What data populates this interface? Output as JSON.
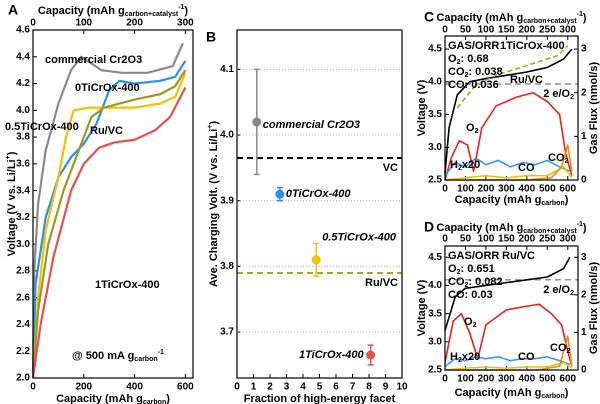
{
  "chart_data": [
    {
      "panel": "A",
      "type": "line",
      "x2label": [
        {
          "text": "Capacity (mAh g"
        },
        {
          "text": "carbon+catalyst",
          "script": "sub"
        },
        {
          "text": "-1",
          "script": "sup"
        },
        {
          "text": ")"
        }
      ],
      "xlabel": [
        {
          "text": "Capacity (mAh g"
        },
        {
          "text": "carbon",
          "script": "sub"
        },
        {
          "text": ")"
        }
      ],
      "ylabel": [
        {
          "text": "Voltage (V vs. Li/Li"
        },
        {
          "text": "+",
          "script": "sup"
        },
        {
          "text": ")"
        }
      ],
      "xlim": [
        0,
        630
      ],
      "xticks": [
        0,
        200,
        400,
        600
      ],
      "x2lim": [
        0,
        315
      ],
      "x2ticks": [
        0,
        100,
        200,
        300
      ],
      "ylim": [
        2.0,
        4.6
      ],
      "yticks": [
        {
          "value": 2,
          "label": "2.0"
        },
        2.2,
        2.4,
        2.6,
        2.8,
        {
          "value": 3,
          "label": "3.0"
        },
        3.2,
        3.4,
        3.6,
        3.8,
        {
          "value": 4,
          "label": "4.0"
        },
        4.2,
        4.4,
        4.6
      ],
      "series": [
        {
          "name": "commercial Cr2O3",
          "color": "#8a8a8a",
          "x": [
            0,
            5,
            20,
            50,
            100,
            150,
            190,
            230,
            270,
            350,
            450,
            550,
            590
          ],
          "values": [
            2.0,
            2.8,
            3.3,
            3.7,
            4.05,
            4.3,
            4.4,
            4.35,
            4.3,
            4.28,
            4.28,
            4.33,
            4.5
          ]
        },
        {
          "name": "0TiCrOx-400",
          "color": "#2e8ee8",
          "x": [
            0,
            10,
            50,
            100,
            150,
            200,
            250,
            300,
            340,
            400,
            500,
            560,
            600
          ],
          "values": [
            2.0,
            2.7,
            3.2,
            3.5,
            3.65,
            3.75,
            3.9,
            4.15,
            4.22,
            4.2,
            4.22,
            4.25,
            4.37
          ]
        },
        {
          "name": "0.5TiCrOx-400",
          "color": "#f2c200",
          "x": [
            0,
            20,
            50,
            100,
            130,
            160,
            220,
            300,
            400,
            500,
            560,
            600
          ],
          "values": [
            2.0,
            2.6,
            3.1,
            3.5,
            3.8,
            4.0,
            4.02,
            4.02,
            4.02,
            4.05,
            4.1,
            4.28
          ]
        },
        {
          "name": "Ru/VC",
          "color": "#9a9a20",
          "x": [
            0,
            20,
            60,
            120,
            180,
            230,
            280,
            340,
            400,
            500,
            560,
            600
          ],
          "values": [
            2.0,
            2.5,
            3.0,
            3.4,
            3.7,
            3.95,
            4.02,
            4.05,
            4.08,
            4.12,
            4.18,
            4.3
          ]
        },
        {
          "name": "1TiCrOx-400",
          "color": "#e85050",
          "x": [
            0,
            30,
            80,
            150,
            200,
            260,
            320,
            400,
            480,
            540,
            600
          ],
          "values": [
            2.0,
            2.4,
            2.9,
            3.4,
            3.6,
            3.72,
            3.76,
            3.78,
            3.85,
            3.95,
            4.17
          ]
        }
      ],
      "annotations": [
        {
          "parts": [
            {
              "text": "@ 500 mA g"
            },
            {
              "text": "carbon",
              "script": "sub"
            },
            {
              "text": "-1",
              "script": "sup"
            }
          ],
          "color": "#000000"
        }
      ]
    },
    {
      "panel": "B",
      "type": "scatter",
      "xlabel": [
        {
          "text": "Fraction of high-energy facet"
        }
      ],
      "ylabel": [
        {
          "text": "Ave. Charging Volt. (V vs. Li/Li"
        },
        {
          "text": "+",
          "script": "sup"
        },
        {
          "text": ")"
        }
      ],
      "xlim": [
        0,
        10
      ],
      "xticks": [
        0,
        1,
        2,
        3,
        4,
        5,
        6,
        7,
        8,
        9,
        10
      ],
      "ylim": [
        3.63,
        4.16
      ],
      "yticks": [
        3.7,
        3.8,
        3.9,
        {
          "value": 4,
          "label": "4.0"
        },
        4.1
      ],
      "grid": true,
      "series": [
        {
          "name": "commercial Cr2O3",
          "color": "#8a8a8a",
          "x": [
            1.2
          ],
          "values": [
            4.02
          ],
          "errors": [
            0.08
          ]
        },
        {
          "name": "0TiCrOx-400",
          "color": "#2e8ee8",
          "x": [
            2.6
          ],
          "values": [
            3.91
          ],
          "errors": [
            0.01
          ]
        },
        {
          "name": "0.5TiCrOx-400",
          "color": "#f2c200",
          "x": [
            4.8
          ],
          "values": [
            3.81
          ],
          "errors": [
            0.025
          ]
        },
        {
          "name": "1TiCrOx-400",
          "color": "#e85050",
          "x": [
            8.1
          ],
          "values": [
            3.665
          ],
          "errors": [
            0.015
          ]
        }
      ],
      "hlines": [
        {
          "label": [
            {
              "text": "VC"
            }
          ],
          "value": 3.965,
          "color": "#000000"
        },
        {
          "label": [
            {
              "text": "Ru/VC"
            }
          ],
          "value": 3.79,
          "color": "#a8a820"
        }
      ]
    },
    {
      "panel": "C",
      "type": "line",
      "x2label": [
        {
          "text": "Capacity (mAh g"
        },
        {
          "text": "carbon+catalyst",
          "script": "sub"
        },
        {
          "text": "-1",
          "script": "sup"
        },
        {
          "text": ")"
        }
      ],
      "xlabel": [
        {
          "text": "Capacity (mAh g"
        },
        {
          "text": "carbon",
          "script": "sub"
        },
        {
          "text": ")"
        }
      ],
      "ylabel": [
        {
          "text": "Voltage (V)"
        }
      ],
      "y2label": [
        {
          "text": "Gas Flux (nmol/s)"
        }
      ],
      "xlim": [
        0,
        650
      ],
      "xticks": [
        0,
        100,
        200,
        300,
        400,
        500,
        600
      ],
      "x2lim": [
        0,
        325
      ],
      "x2ticks": [
        0,
        50,
        100,
        150,
        200,
        250,
        300
      ],
      "ylim": [
        2.5,
        4.7
      ],
      "yticks": [
        2.5,
        {
          "value": 3,
          "label": "3.0"
        },
        3.5,
        {
          "value": 4,
          "label": "4.0"
        },
        4.5
      ],
      "y2lim": [
        0,
        3.3
      ],
      "y2ticks": [
        0,
        1,
        2,
        3
      ],
      "series": [
        {
          "color": "#000000",
          "x": [
            0,
            20,
            60,
            120,
            200,
            300,
            400,
            500,
            580,
            620
          ],
          "values": [
            2.6,
            3.3,
            3.8,
            4.0,
            4.05,
            4.1,
            4.15,
            4.22,
            4.35,
            4.5
          ]
        },
        {
          "color": "#a8a820",
          "dashed": true,
          "x": [
            60,
            150,
            250,
            350,
            450,
            550,
            600
          ],
          "values": [
            3.6,
            3.95,
            4.1,
            4.2,
            4.3,
            4.4,
            4.55
          ]
        },
        {
          "color": "#ee2020",
          "axis": "y2",
          "x": [
            0,
            30,
            70,
            110,
            140,
            180,
            250,
            350,
            430,
            500,
            560,
            590,
            620
          ],
          "values": [
            0,
            0.5,
            0.9,
            0.8,
            0.2,
            1.2,
            1.7,
            1.9,
            2.0,
            1.8,
            1.5,
            0.6,
            0.1
          ]
        },
        {
          "color": "#3a9ae8",
          "axis": "y2",
          "x": [
            0,
            50,
            100,
            150,
            200,
            260,
            320,
            380,
            440,
            500,
            560,
            610
          ],
          "values": [
            0.1,
            0.4,
            0.3,
            0.5,
            0.35,
            0.45,
            0.3,
            0.4,
            0.35,
            0.45,
            0.3,
            0.2
          ]
        },
        {
          "color": "#f2c200",
          "axis": "y2",
          "x": [
            0,
            100,
            200,
            300,
            400,
            500,
            580,
            620
          ],
          "values": [
            0,
            0.05,
            0.1,
            0.05,
            0.1,
            0.1,
            0.3,
            0.05
          ]
        },
        {
          "color": "#f08a10",
          "axis": "y2",
          "x": [
            0,
            400,
            520,
            570,
            600,
            620
          ],
          "values": [
            0,
            0,
            0.05,
            0.3,
            0.8,
            0.2
          ]
        }
      ],
      "hlines": [
        {
          "label": [
            {
              "text": "2 e/O"
            },
            {
              "text": "2",
              "script": "sub"
            }
          ],
          "value": 2.2,
          "axis": "y2",
          "color": "#777777"
        }
      ],
      "annotations": [
        {
          "parts": [
            {
              "text": "GAS/ORR"
            }
          ],
          "color": "#000000"
        },
        {
          "parts": [
            {
              "text": "1TiCrOx-400"
            }
          ],
          "color": "#ee2020"
        },
        {
          "parts": [
            {
              "text": "O"
            },
            {
              "text": "2",
              "script": "sub"
            },
            {
              "text": ": 0.68"
            }
          ],
          "color": "#000000"
        },
        {
          "parts": [
            {
              "text": "CO"
            },
            {
              "text": "2",
              "script": "sub"
            },
            {
              "text": ": 0.038"
            }
          ],
          "color": "#000000"
        },
        {
          "parts": [
            {
              "text": "CO: 0.036"
            }
          ],
          "color": "#000000"
        },
        {
          "parts": [
            {
              "text": "Ru/VC"
            }
          ],
          "color": "#a8a820"
        },
        {
          "parts": [
            {
              "text": "O"
            },
            {
              "text": "2",
              "script": "sub"
            }
          ],
          "color": "#ee2020"
        },
        {
          "parts": [
            {
              "text": "H"
            },
            {
              "text": "2",
              "script": "sub"
            },
            {
              "text": "x20"
            }
          ],
          "color": "#3a9ae8"
        },
        {
          "parts": [
            {
              "text": "CO"
            }
          ],
          "color": "#e0b000"
        },
        {
          "parts": [
            {
              "text": "CO"
            },
            {
              "text": "2",
              "script": "sub"
            }
          ],
          "color": "#f08a10"
        }
      ]
    },
    {
      "panel": "D",
      "type": "line",
      "x2label": [
        {
          "text": "Capacity (mAh g"
        },
        {
          "text": "carbon+catalyst",
          "script": "sub"
        },
        {
          "text": "-1",
          "script": "sup"
        },
        {
          "text": ")"
        }
      ],
      "xlabel": [
        {
          "text": "Capacity (mAh g"
        },
        {
          "text": "carbon",
          "script": "sub"
        },
        {
          "text": ")"
        }
      ],
      "ylabel": [
        {
          "text": "Voltage (V)"
        }
      ],
      "y2label": [
        {
          "text": "Gas Flux (nmol/s)"
        }
      ],
      "xlim": [
        0,
        650
      ],
      "xticks": [
        0,
        100,
        200,
        300,
        400,
        500,
        600
      ],
      "x2lim": [
        0,
        325
      ],
      "x2ticks": [
        0,
        50,
        100,
        150,
        200,
        250,
        300
      ],
      "ylim": [
        2.5,
        4.7
      ],
      "yticks": [
        2.5,
        {
          "value": 3,
          "label": "3.0"
        },
        3.5,
        {
          "value": 4,
          "label": "4.0"
        },
        4.5
      ],
      "y2lim": [
        0,
        3.3
      ],
      "y2ticks": [
        0,
        1,
        2,
        3
      ],
      "series": [
        {
          "color": "#000000",
          "x": [
            0,
            50,
            100,
            200,
            300,
            400,
            500,
            580,
            610
          ],
          "values": [
            3.2,
            3.8,
            3.95,
            4.0,
            4.05,
            4.1,
            4.15,
            4.3,
            4.5
          ]
        },
        {
          "color": "#ee2020",
          "axis": "y2",
          "x": [
            0,
            40,
            80,
            120,
            160,
            200,
            300,
            400,
            460,
            520,
            570,
            600,
            620
          ],
          "values": [
            0.2,
            1.3,
            1.5,
            1.0,
            0.3,
            1.2,
            1.6,
            1.7,
            1.75,
            1.5,
            1.2,
            0.5,
            0.1
          ]
        },
        {
          "color": "#3a9ae8",
          "axis": "y2",
          "x": [
            0,
            50,
            100,
            150,
            200,
            260,
            320,
            380,
            440,
            500,
            560,
            610
          ],
          "values": [
            0.1,
            0.3,
            0.25,
            0.35,
            0.3,
            0.35,
            0.25,
            0.3,
            0.3,
            0.35,
            0.25,
            0.15
          ]
        },
        {
          "color": "#f2c200",
          "axis": "y2",
          "x": [
            0,
            100,
            200,
            300,
            400,
            500,
            580,
            620
          ],
          "values": [
            0,
            0.05,
            0.08,
            0.05,
            0.08,
            0.08,
            0.2,
            0.05
          ]
        },
        {
          "color": "#f08a10",
          "axis": "y2",
          "x": [
            0,
            450,
            560,
            600,
            620
          ],
          "values": [
            0,
            0,
            0.1,
            0.9,
            0.1
          ]
        }
      ],
      "hlines": [
        {
          "label": [
            {
              "text": "2 e/O"
            },
            {
              "text": "2",
              "script": "sub"
            }
          ],
          "value": 2.4,
          "axis": "y2",
          "color": "#777777"
        }
      ],
      "annotations": [
        {
          "parts": [
            {
              "text": "GAS/ORR"
            }
          ],
          "color": "#000000"
        },
        {
          "parts": [
            {
              "text": "Ru/VC"
            }
          ],
          "color": "#a8a820"
        },
        {
          "parts": [
            {
              "text": "O"
            },
            {
              "text": "2",
              "script": "sub"
            },
            {
              "text": ": 0.651"
            }
          ],
          "color": "#000000"
        },
        {
          "parts": [
            {
              "text": "CO"
            },
            {
              "text": "2",
              "script": "sub"
            },
            {
              "text": ": 0.082"
            }
          ],
          "color": "#000000"
        },
        {
          "parts": [
            {
              "text": "CO: 0.03"
            }
          ],
          "color": "#000000"
        },
        {
          "parts": [
            {
              "text": "O"
            },
            {
              "text": "2",
              "script": "sub"
            }
          ],
          "color": "#ee2020"
        },
        {
          "parts": [
            {
              "text": "H"
            },
            {
              "text": "2",
              "script": "sub"
            },
            {
              "text": "x20"
            }
          ],
          "color": "#3a9ae8"
        },
        {
          "parts": [
            {
              "text": "CO"
            }
          ],
          "color": "#e0b000"
        },
        {
          "parts": [
            {
              "text": "CO"
            },
            {
              "text": "2",
              "script": "sub"
            }
          ],
          "color": "#f08a10"
        }
      ]
    }
  ]
}
